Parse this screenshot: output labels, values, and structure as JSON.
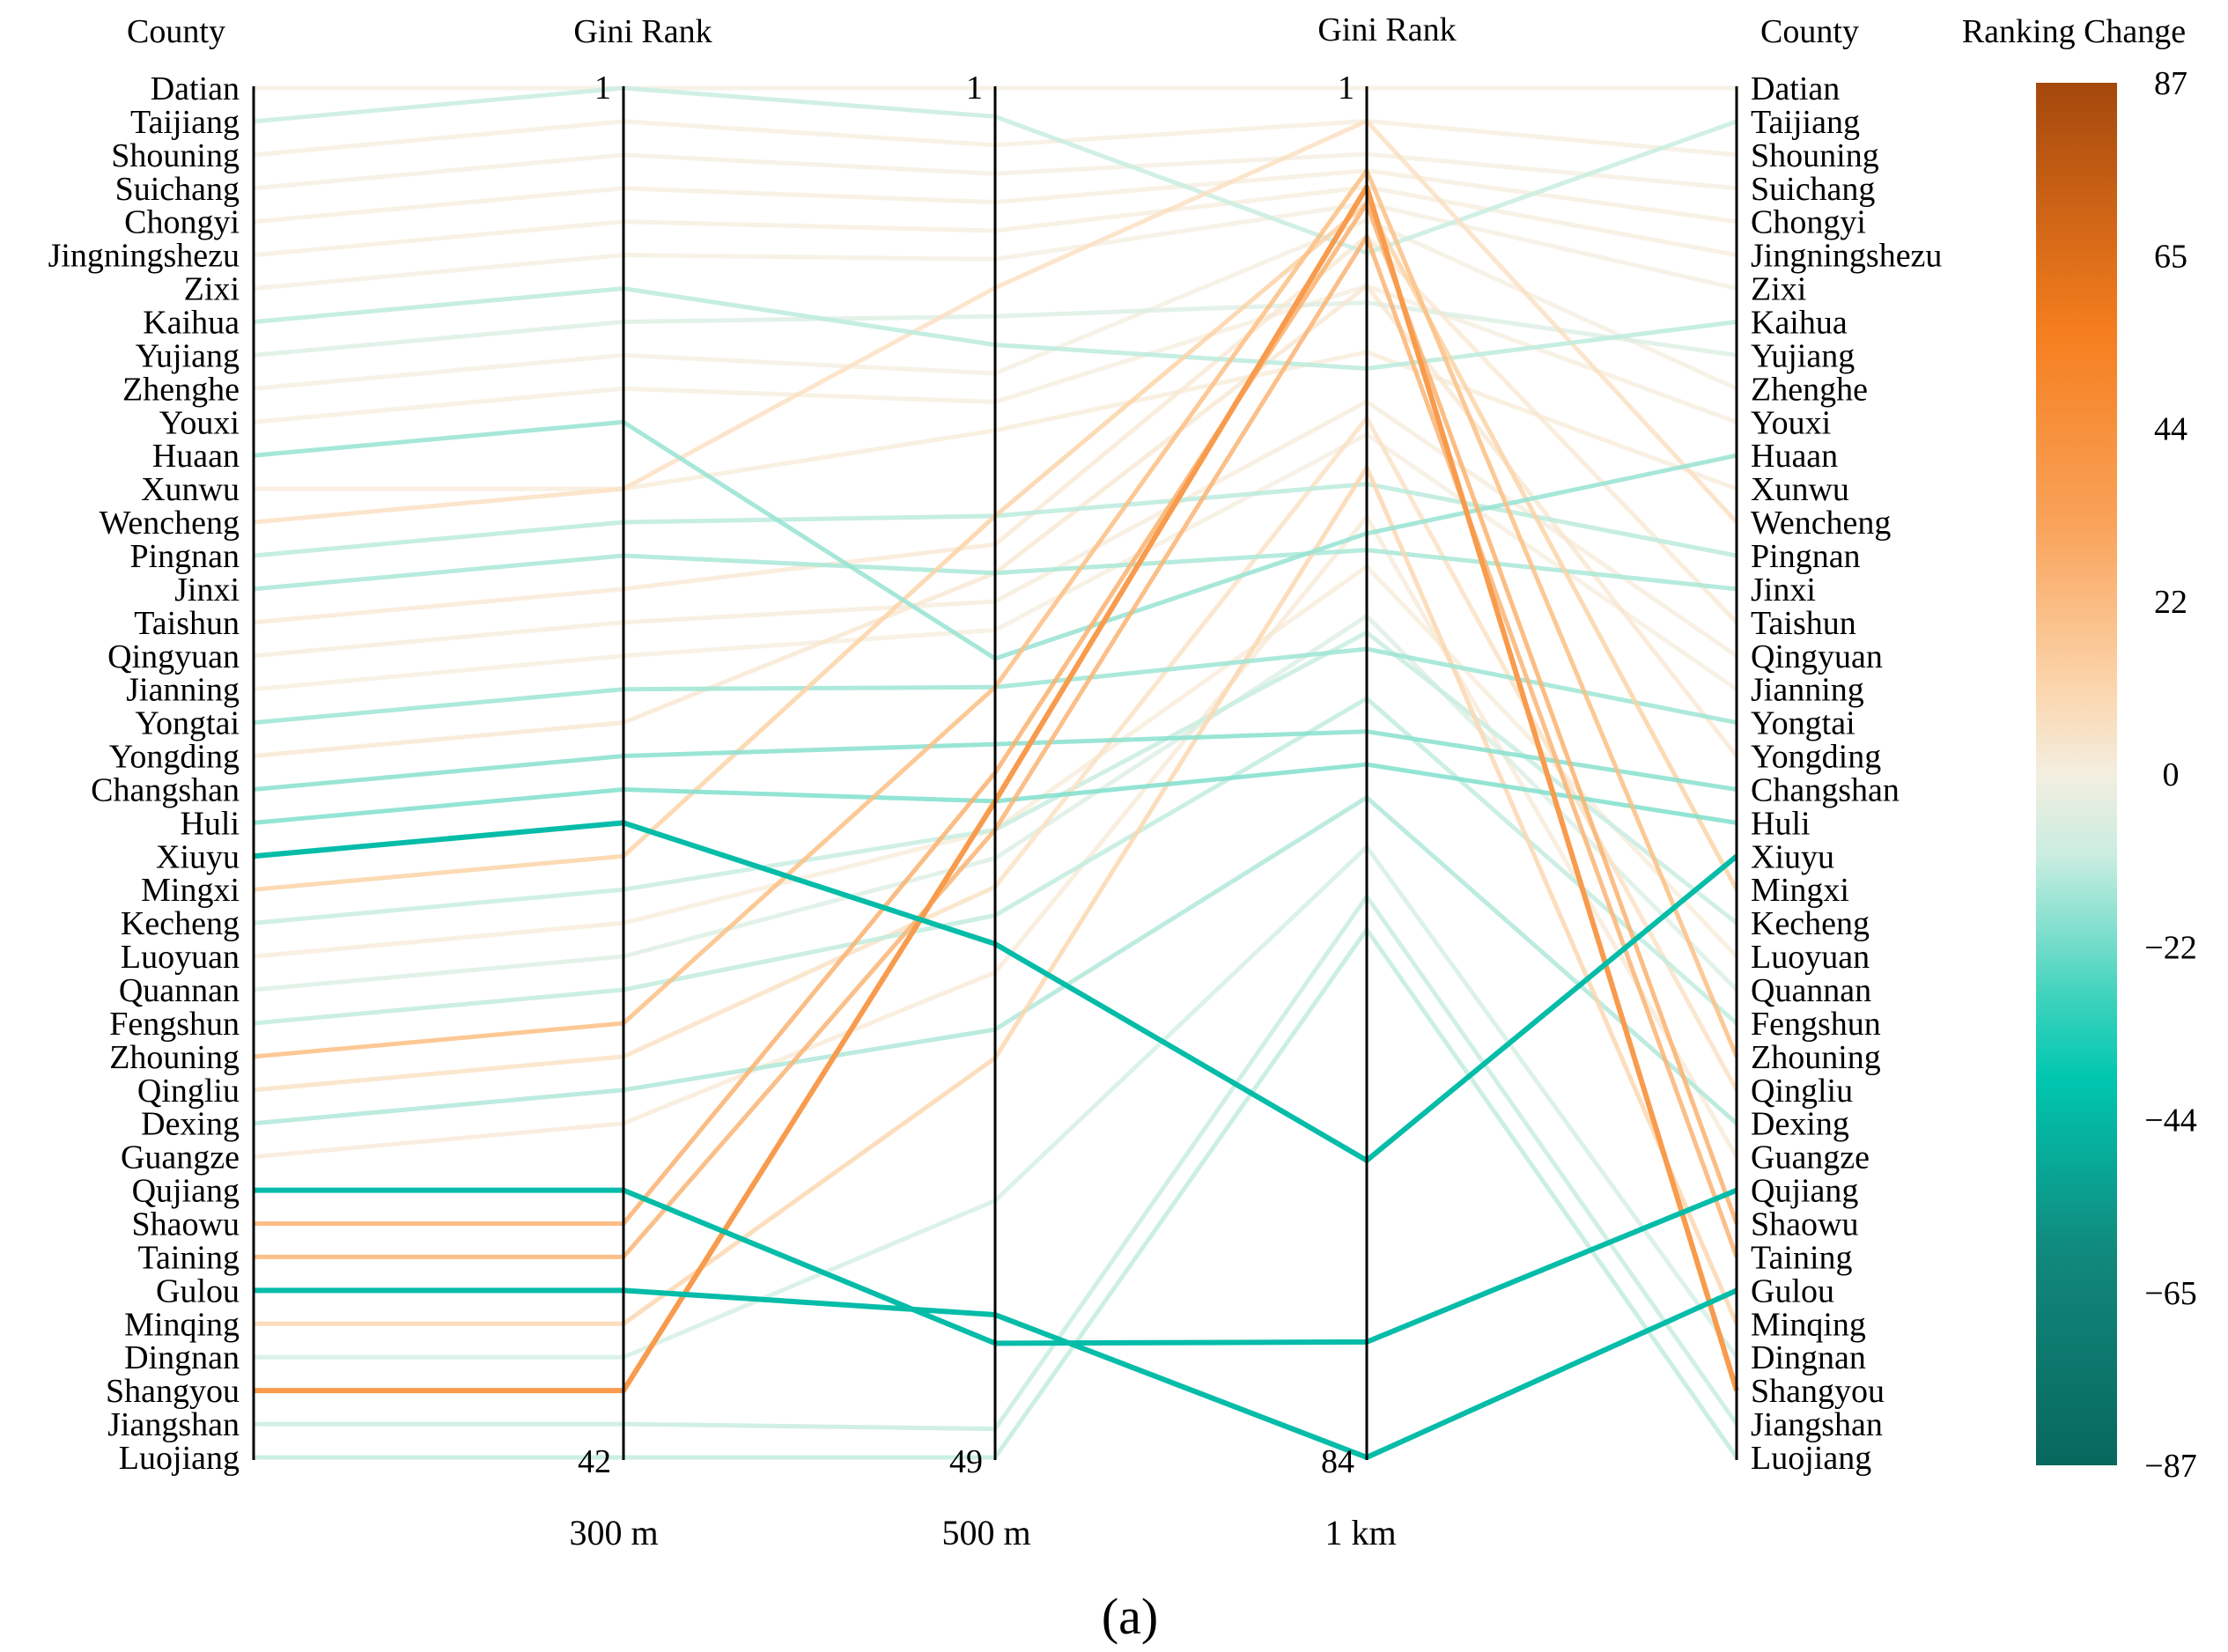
{
  "chart_data": {
    "type": "parallel-coordinates",
    "title": "",
    "panel_label": "(a)",
    "headers": {
      "left_county": "County",
      "gini_rank_1": "Gini Rank",
      "gini_rank_2": "Gini Rank",
      "right_county": "County",
      "colorbar": "Ranking Change"
    },
    "axes": [
      {
        "label": "300 m",
        "top": 1,
        "bottom": 42,
        "range": [
          1,
          42
        ]
      },
      {
        "label": "500 m",
        "top": 1,
        "bottom": 49,
        "range": [
          1,
          49
        ]
      },
      {
        "label": "1 km",
        "top": 1,
        "bottom": 84,
        "range": [
          1,
          84
        ]
      }
    ],
    "colorbar": {
      "ticks": [
        "87",
        "65",
        "44",
        "22",
        "0",
        "−22",
        "−44",
        "−65",
        "−87"
      ],
      "range": [
        -87,
        87
      ],
      "colors_positive": [
        "#f3eee0",
        "#fbe0c2",
        "#fbc891",
        "#f9a35a",
        "#f57e1e",
        "#e5650e",
        "#c85a10",
        "#a4480d"
      ],
      "colors_negative": [
        "#f3eee0",
        "#c8ede0",
        "#8fe2d0",
        "#40d3bd",
        "#00c7b0",
        "#0fa898",
        "#11877b",
        "#08685e"
      ]
    },
    "counties": [
      "Datian",
      "Taijiang",
      "Shouning",
      "Suichang",
      "Chongyi",
      "Jingningshezu",
      "Zixi",
      "Kaihua",
      "Yujiang",
      "Zhenghe",
      "Youxi",
      "Huaan",
      "Xunwu",
      "Wencheng",
      "Pingnan",
      "Jinxi",
      "Taishun",
      "Qingyuan",
      "Jianning",
      "Yongtai",
      "Yongding",
      "Changshan",
      "Huli",
      "Xiuyu",
      "Mingxi",
      "Kecheng",
      "Luoyuan",
      "Quannan",
      "Fengshun",
      "Zhouning",
      "Qingliu",
      "Dexing",
      "Guangze",
      "Qujiang",
      "Shaowu",
      "Taining",
      "Gulou",
      "Minqing",
      "Dingnan",
      "Shangyou",
      "Jiangshan",
      "Luojiang"
    ],
    "series": [
      {
        "county": "Datian",
        "ranks": [
          1,
          1,
          1
        ],
        "change": 1
      },
      {
        "county": "Taijiang",
        "ranks": [
          1,
          2,
          11
        ],
        "change": -9
      },
      {
        "county": "Shouning",
        "ranks": [
          2,
          3,
          3
        ],
        "change": 2
      },
      {
        "county": "Suichang",
        "ranks": [
          3,
          4,
          5
        ],
        "change": 1
      },
      {
        "county": "Chongyi",
        "ranks": [
          4,
          5,
          6
        ],
        "change": 2
      },
      {
        "county": "Jingningshezu",
        "ranks": [
          5,
          6,
          7
        ],
        "change": 2
      },
      {
        "county": "Zixi",
        "ranks": [
          6,
          7,
          8
        ],
        "change": 1
      },
      {
        "county": "Kaihua",
        "ranks": [
          7,
          10,
          18
        ],
        "change": -11
      },
      {
        "county": "Yujiang",
        "ranks": [
          8,
          9,
          14
        ],
        "change": -6
      },
      {
        "county": "Zhenghe",
        "ranks": [
          9,
          11,
          9
        ],
        "change": 1
      },
      {
        "county": "Youxi",
        "ranks": [
          10,
          12,
          13
        ],
        "change": 2
      },
      {
        "county": "Huaan",
        "ranks": [
          11,
          21,
          28
        ],
        "change": -17
      },
      {
        "county": "Xunwu",
        "ranks": [
          13,
          13,
          17
        ],
        "change": 4
      },
      {
        "card": "",
        "county": "Wencheng",
        "ranks": [
          13,
          8,
          3
        ],
        "change": 10
      },
      {
        "county": "Pingnan",
        "ranks": [
          14,
          16,
          25
        ],
        "change": -11
      },
      {
        "county": "Jinxi",
        "ranks": [
          15,
          18,
          29
        ],
        "change": -14
      },
      {
        "county": "Taishun",
        "ranks": [
          16,
          17,
          10
        ],
        "change": 6
      },
      {
        "county": "Qingyuan",
        "ranks": [
          17,
          19,
          20
        ],
        "change": 3
      },
      {
        "county": "Jianning",
        "ranks": [
          18,
          20,
          22
        ],
        "change": 2
      },
      {
        "county": "Yongtai",
        "ranks": [
          19,
          22,
          35
        ],
        "change": -16
      },
      {
        "county": "Yongding",
        "ranks": [
          20,
          18,
          13
        ],
        "change": 7
      },
      {
        "county": "Changshan",
        "ranks": [
          21,
          24,
          40
        ],
        "change": -19
      },
      {
        "county": "Huli",
        "ranks": [
          22,
          26,
          42
        ],
        "change": -20
      },
      {
        "county": "Xiuyu",
        "ranks": [
          23,
          31,
          66
        ],
        "change": -43
      },
      {
        "county": "Mingxi",
        "ranks": [
          24,
          16,
          8
        ],
        "change": 16
      },
      {
        "county": "Kecheng",
        "ranks": [
          25,
          27,
          34
        ],
        "change": -9
      },
      {
        "county": "Luoyuan",
        "ranks": [
          26,
          27,
          30
        ],
        "change": 4
      },
      {
        "county": "Quannan",
        "ranks": [
          27,
          28,
          33
        ],
        "change": -6
      },
      {
        "county": "Fengshun",
        "ranks": [
          28,
          30,
          38
        ],
        "change": -10
      },
      {
        "county": "Zhouning",
        "ranks": [
          29,
          22,
          6
        ],
        "change": 23
      },
      {
        "county": "Qingliu",
        "ranks": [
          30,
          29,
          21
        ],
        "change": 9
      },
      {
        "county": "Dexing",
        "ranks": [
          31,
          34,
          44
        ],
        "change": -13
      },
      {
        "county": "Guangze",
        "ranks": [
          32,
          32,
          27
        ],
        "change": 5
      },
      {
        "county": "Qujiang",
        "ranks": [
          34,
          45,
          77
        ],
        "change": -43
      },
      {
        "county": "Shaowu",
        "ranks": [
          35,
          25,
          8
        ],
        "change": 27
      },
      {
        "county": "Taining",
        "ranks": [
          36,
          27,
          10
        ],
        "change": 26
      },
      {
        "county": "Gulou",
        "ranks": [
          37,
          44,
          84
        ],
        "change": -47
      },
      {
        "county": "Minqing",
        "ranks": [
          38,
          35,
          24
        ],
        "change": 14
      },
      {
        "county": "Dingnan",
        "ranks": [
          39,
          40,
          47
        ],
        "change": -8
      },
      {
        "county": "Shangyou",
        "ranks": [
          40,
          26,
          7
        ],
        "change": 33
      },
      {
        "county": "Jiangshan",
        "ranks": [
          41,
          48,
          50
        ],
        "change": -9
      },
      {
        "county": "Luojiang",
        "ranks": [
          42,
          49,
          52
        ],
        "change": -10
      }
    ]
  }
}
